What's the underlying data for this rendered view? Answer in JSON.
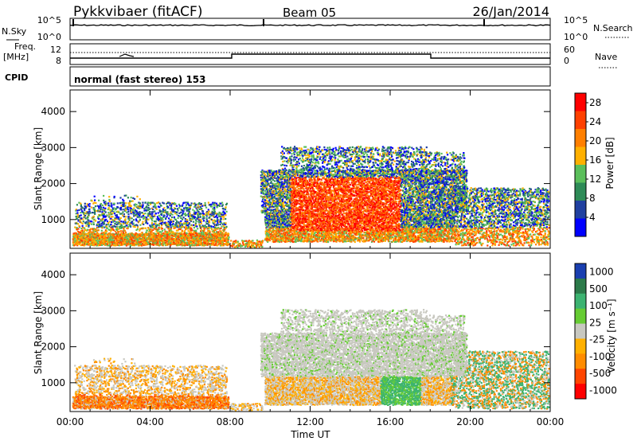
{
  "header": {
    "station": "Pykkvibaer (fitACF)",
    "beam": "Beam 05",
    "date": "26/Jan/2014"
  },
  "status_panel": {
    "nsky_label": "N.Sky",
    "nsky_ticks": [
      "10^5",
      "10^0"
    ],
    "nsearch_label": "N.Search",
    "nsearch_ticks": [
      "10^5",
      "10^0"
    ],
    "freq_label": "Freq.",
    "freq_unit": "[MHz]",
    "freq_ticks": [
      "12",
      "8"
    ],
    "nave_label": "Nave",
    "nave_ticks": [
      "60",
      "0"
    ],
    "cpid_label": "CPID",
    "cpid_text": "normal (fast stereo) 153"
  },
  "colors": {
    "power_scale": [
      "#0000ff",
      "#2040a0",
      "#2e8b57",
      "#5bbf5b",
      "#ffb000",
      "#ff7f00",
      "#ff4000",
      "#ff0000"
    ],
    "velocity_scale": [
      "#1a3fb0",
      "#2c7a4a",
      "#3cb371",
      "#66cc33",
      "#c8c8c0",
      "#ffb000",
      "#ff8c00",
      "#ff4500",
      "#ff0000"
    ]
  },
  "chart_data": [
    {
      "type": "heatmap",
      "title": "",
      "ylabel": "Slant Range [km]",
      "xlabel": "",
      "xlim": [
        "00:00",
        "24:00"
      ],
      "ylim": [
        200,
        4600
      ],
      "y_ticks": [
        "1000",
        "2000",
        "3000",
        "4000"
      ],
      "colorbar": {
        "label": "Power [dB]",
        "ticks": [
          "28",
          "24",
          "20",
          "16",
          "12",
          "8",
          "4"
        ],
        "range": [
          0,
          30
        ]
      }
    },
    {
      "type": "heatmap",
      "title": "",
      "ylabel": "Slant Range [km]",
      "xlabel": "Time UT",
      "xlim": [
        "00:00",
        "24:00"
      ],
      "ylim": [
        200,
        4600
      ],
      "x_ticks": [
        "00:00",
        "04:00",
        "08:00",
        "12:00",
        "16:00",
        "20:00",
        "00:00"
      ],
      "y_ticks": [
        "1000",
        "2000",
        "3000",
        "4000"
      ],
      "colorbar": {
        "label": "Velocity [m s⁻¹]",
        "ticks": [
          "1000",
          "500",
          "100",
          "25",
          "-25",
          "-100",
          "-500",
          "-1000"
        ]
      }
    }
  ]
}
